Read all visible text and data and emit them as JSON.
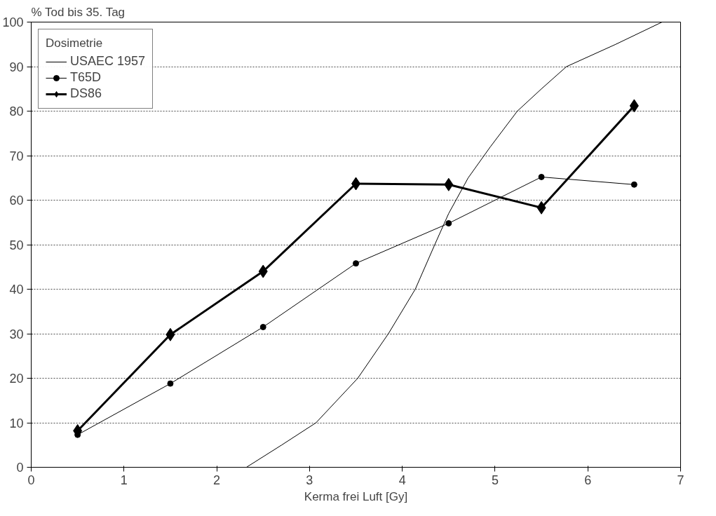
{
  "chart_data": {
    "type": "line",
    "ylabel": "% Tod bis 35. Tag",
    "xlabel": "Kerma frei Luft [Gy]",
    "legend_title": "Dosimetrie",
    "legend": "top left",
    "grid": "y",
    "xlim": [
      0,
      7
    ],
    "ylim": [
      0,
      100
    ],
    "xticks": [
      0,
      1,
      2,
      3,
      4,
      5,
      6,
      7
    ],
    "yticks": [
      0,
      10,
      20,
      30,
      40,
      50,
      60,
      70,
      80,
      90,
      100
    ],
    "series": [
      {
        "name": "USAEC 1957",
        "color": "#000000",
        "marker": "none",
        "x": [
          2.32,
          2.7,
          3.07,
          3.52,
          3.85,
          4.14,
          4.35,
          4.5,
          4.71,
          4.95,
          5.24,
          5.5,
          5.77,
          6.3,
          6.8
        ],
        "values": [
          0,
          5,
          10,
          20,
          30,
          40,
          50,
          57,
          65,
          72,
          80,
          85,
          90,
          95,
          100
        ]
      },
      {
        "name": "T65D",
        "color": "#000000",
        "marker": "circle",
        "x": [
          0.5,
          1.5,
          2.5,
          3.5,
          4.5,
          5.5,
          6.5
        ],
        "values": [
          7.3,
          18.8,
          31.5,
          45.8,
          54.8,
          65.2,
          63.5
        ]
      },
      {
        "name": "DS86",
        "color": "#000000",
        "marker": "diamond",
        "x": [
          0.5,
          1.5,
          2.5,
          3.5,
          4.5,
          5.5,
          6.5
        ],
        "values": [
          8.2,
          29.8,
          44,
          63.7,
          63.5,
          58.3,
          81.2
        ]
      }
    ]
  }
}
